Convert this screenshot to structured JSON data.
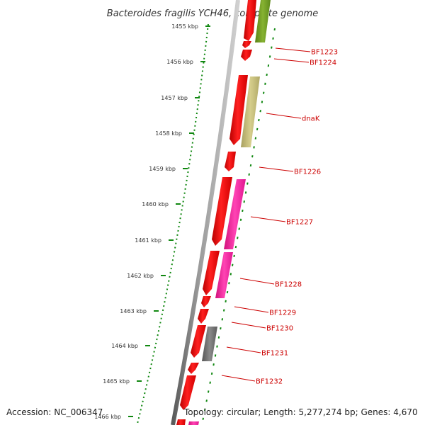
{
  "title": "Bacteroides fragilis YCH46, complete genome",
  "footer": {
    "accession": "Accession: NC_006347",
    "stats": "Topology: circular; Length: 5,277,274 bp; Genes: 4,670"
  },
  "colors": {
    "forward_gene": "#ff0000",
    "pink_gene": "#ff2aa0",
    "olive_gene": "#6e9a1e",
    "khaki_gene": "#c8c07a",
    "gray_gene": "#707070",
    "backbone": "#808080",
    "scale_dots": "#118811",
    "label_text": "#cc0000"
  },
  "ticks": [
    "1455 kbp",
    "1456 kbp",
    "1457 kbp",
    "1458 kbp",
    "1459 kbp",
    "1460 kbp",
    "1461 kbp",
    "1462 kbp",
    "1463 kbp",
    "1464 kbp",
    "1465 kbp",
    "1466 kbp"
  ],
  "gene_labels": [
    "BF1223",
    "BF1224",
    "dnaK",
    "BF1226",
    "BF1227",
    "BF1228",
    "BF1229",
    "BF1230",
    "BF1231",
    "BF1232"
  ]
}
